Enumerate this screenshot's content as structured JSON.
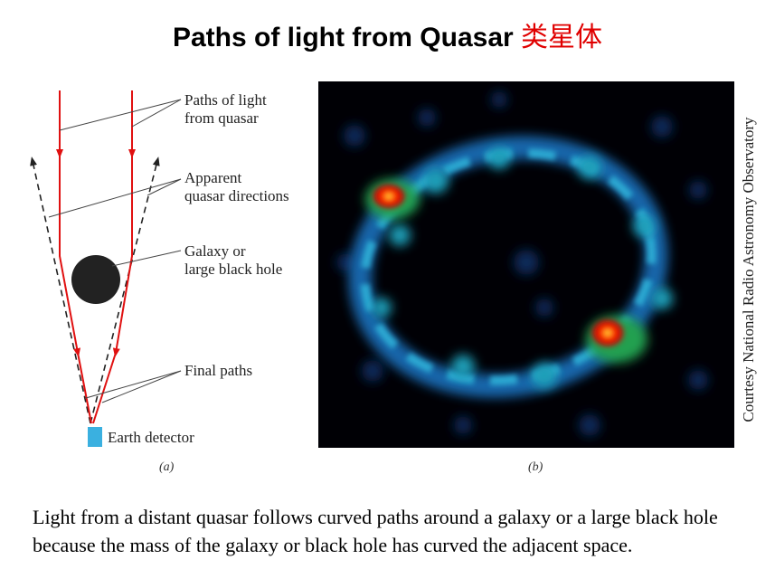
{
  "title": {
    "main": "Paths of light from Quasar",
    "zh": "类星体"
  },
  "labels": {
    "paths": [
      "Paths of light",
      "from quasar"
    ],
    "apparent": [
      "Apparent",
      "quasar directions"
    ],
    "galaxy": [
      "Galaxy or",
      "large black hole"
    ],
    "final": "Final paths",
    "detector": "Earth detector"
  },
  "panels": {
    "a": "(a)",
    "b": "(b)"
  },
  "credit": "Courtesy National Radio Astronomy Observatory",
  "caption": "Light from a distant quasar follows curved paths around a galaxy or a large black hole because the mass of the galaxy or black hole has curved the adjacent space.",
  "colors": {
    "light_path": "#e01010",
    "black_hole": "#222222",
    "detector": "#3ab0e0",
    "apparent": "#222222"
  }
}
